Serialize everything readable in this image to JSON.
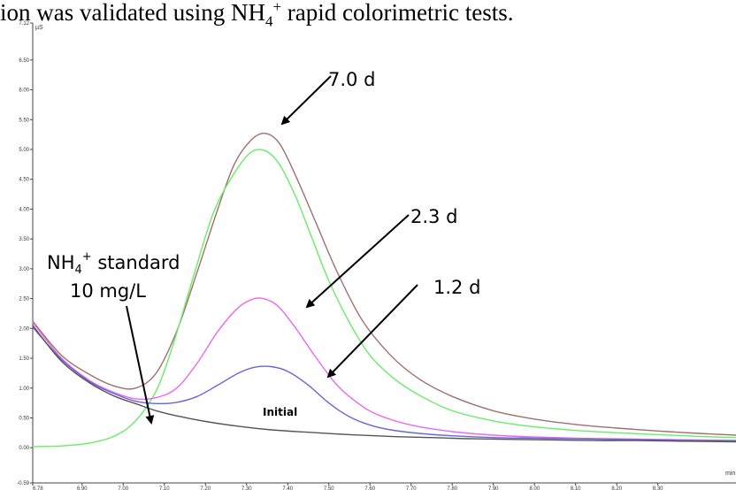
{
  "caption": {
    "pre": "ion was validated using NH",
    "sub": "4",
    "sup": "+",
    "post": " rapid colorimetric tests."
  },
  "chart_data": {
    "type": "line",
    "title": "",
    "xlabel": "min",
    "ylabel": "µS",
    "xlim": [
      6.78,
      8.49
    ],
    "ylim": [
      -0.59,
      7.12
    ],
    "grid": false,
    "y_ticks": [
      "7.12",
      "6.50",
      "6.00",
      "5.50",
      "5.00",
      "4.50",
      "4.00",
      "3.50",
      "3.00",
      "2.50",
      "2.00",
      "1.50",
      "1.00",
      "0.50",
      "0.00",
      "-0.59"
    ],
    "y_tick_values": [
      7.12,
      6.5,
      6.0,
      5.5,
      5.0,
      4.5,
      4.0,
      3.5,
      3.0,
      2.5,
      2.0,
      1.5,
      1.0,
      0.5,
      0.0,
      -0.59
    ],
    "x_ticks": [
      "6.78",
      "6.90",
      "7.00",
      "7.10",
      "7.20",
      "7.30",
      "7.40",
      "7.50",
      "7.60",
      "7.70",
      "7.80",
      "7.90",
      "8.00",
      "8.10",
      "8.20",
      "8.30"
    ],
    "x_tick_values": [
      6.78,
      6.9,
      7.0,
      7.1,
      7.2,
      7.3,
      7.4,
      7.5,
      7.6,
      7.7,
      7.8,
      7.9,
      8.0,
      8.1,
      8.2,
      8.3
    ],
    "series": [
      {
        "color": "#a0706c",
        "x": [
          6.78,
          6.85,
          6.92,
          6.98,
          7.03,
          7.08,
          7.13,
          7.18,
          7.23,
          7.27,
          7.31,
          7.345,
          7.38,
          7.42,
          7.47,
          7.52,
          7.58,
          7.65,
          7.72,
          7.8,
          7.9,
          8.0,
          8.1,
          8.2,
          8.3,
          8.4,
          8.49
        ],
        "y": [
          2.12,
          1.55,
          1.22,
          1.03,
          1.0,
          1.25,
          1.95,
          2.95,
          4.0,
          4.75,
          5.15,
          5.27,
          5.1,
          4.55,
          3.75,
          2.95,
          2.15,
          1.55,
          1.15,
          0.86,
          0.62,
          0.48,
          0.39,
          0.33,
          0.28,
          0.24,
          0.21
        ]
      },
      {
        "color": "#66ee66",
        "x": [
          6.78,
          6.85,
          6.92,
          6.98,
          7.03,
          7.08,
          7.12,
          7.17,
          7.22,
          7.27,
          7.31,
          7.345,
          7.38,
          7.42,
          7.46,
          7.5,
          7.55,
          7.6,
          7.66,
          7.72,
          7.8,
          7.9,
          8.0,
          8.1,
          8.2,
          8.3,
          8.4,
          8.49
        ],
        "y": [
          0.02,
          0.03,
          0.08,
          0.2,
          0.45,
          0.95,
          1.7,
          2.85,
          3.95,
          4.6,
          4.95,
          4.98,
          4.75,
          4.2,
          3.5,
          2.8,
          2.1,
          1.55,
          1.15,
          0.88,
          0.62,
          0.45,
          0.35,
          0.29,
          0.25,
          0.22,
          0.19,
          0.17
        ]
      },
      {
        "color": "#ee66ee",
        "x": [
          6.78,
          6.85,
          6.92,
          6.98,
          7.03,
          7.08,
          7.13,
          7.18,
          7.23,
          7.28,
          7.32,
          7.35,
          7.38,
          7.42,
          7.47,
          7.52,
          7.57,
          7.62,
          7.7,
          7.8,
          7.9,
          8.0,
          8.1,
          8.2,
          8.3,
          8.4,
          8.49
        ],
        "y": [
          2.1,
          1.5,
          1.12,
          0.92,
          0.82,
          0.84,
          1.0,
          1.42,
          1.95,
          2.35,
          2.5,
          2.48,
          2.35,
          2.0,
          1.5,
          1.05,
          0.75,
          0.55,
          0.38,
          0.27,
          0.21,
          0.18,
          0.16,
          0.15,
          0.14,
          0.13,
          0.12
        ]
      },
      {
        "color": "#6666dd",
        "x": [
          6.78,
          6.85,
          6.92,
          6.98,
          7.03,
          7.08,
          7.13,
          7.18,
          7.23,
          7.28,
          7.32,
          7.36,
          7.4,
          7.45,
          7.5,
          7.55,
          7.6,
          7.65,
          7.72,
          7.8,
          7.9,
          8.0,
          8.1,
          8.2,
          8.3,
          8.4,
          8.49
        ],
        "y": [
          2.02,
          1.48,
          1.1,
          0.9,
          0.78,
          0.74,
          0.76,
          0.86,
          1.05,
          1.25,
          1.35,
          1.36,
          1.28,
          1.05,
          0.75,
          0.52,
          0.38,
          0.3,
          0.24,
          0.2,
          0.17,
          0.16,
          0.15,
          0.14,
          0.13,
          0.12,
          0.12
        ]
      },
      {
        "color": "#555555",
        "x": [
          6.78,
          6.85,
          6.92,
          6.98,
          7.03,
          7.08,
          7.14,
          7.2,
          7.28,
          7.36,
          7.45,
          7.55,
          7.65,
          7.75,
          7.85,
          7.95,
          8.05,
          8.15,
          8.25,
          8.35,
          8.49
        ],
        "y": [
          2.05,
          1.45,
          1.08,
          0.86,
          0.74,
          0.62,
          0.52,
          0.44,
          0.36,
          0.3,
          0.26,
          0.22,
          0.19,
          0.17,
          0.15,
          0.14,
          0.13,
          0.12,
          0.12,
          0.11,
          0.1
        ]
      }
    ],
    "annotations": [
      {
        "id": "d70",
        "text": "7.0 d"
      },
      {
        "id": "d23",
        "text": "2.3 d"
      },
      {
        "id": "d12",
        "text": "1.2 d"
      },
      {
        "id": "nh4",
        "text_main": "NH",
        "text_sub": "4",
        "text_sup": "+",
        "text_rest": " standard",
        "line2": "10 mg/L"
      },
      {
        "id": "initial",
        "text": "Initial"
      }
    ]
  }
}
